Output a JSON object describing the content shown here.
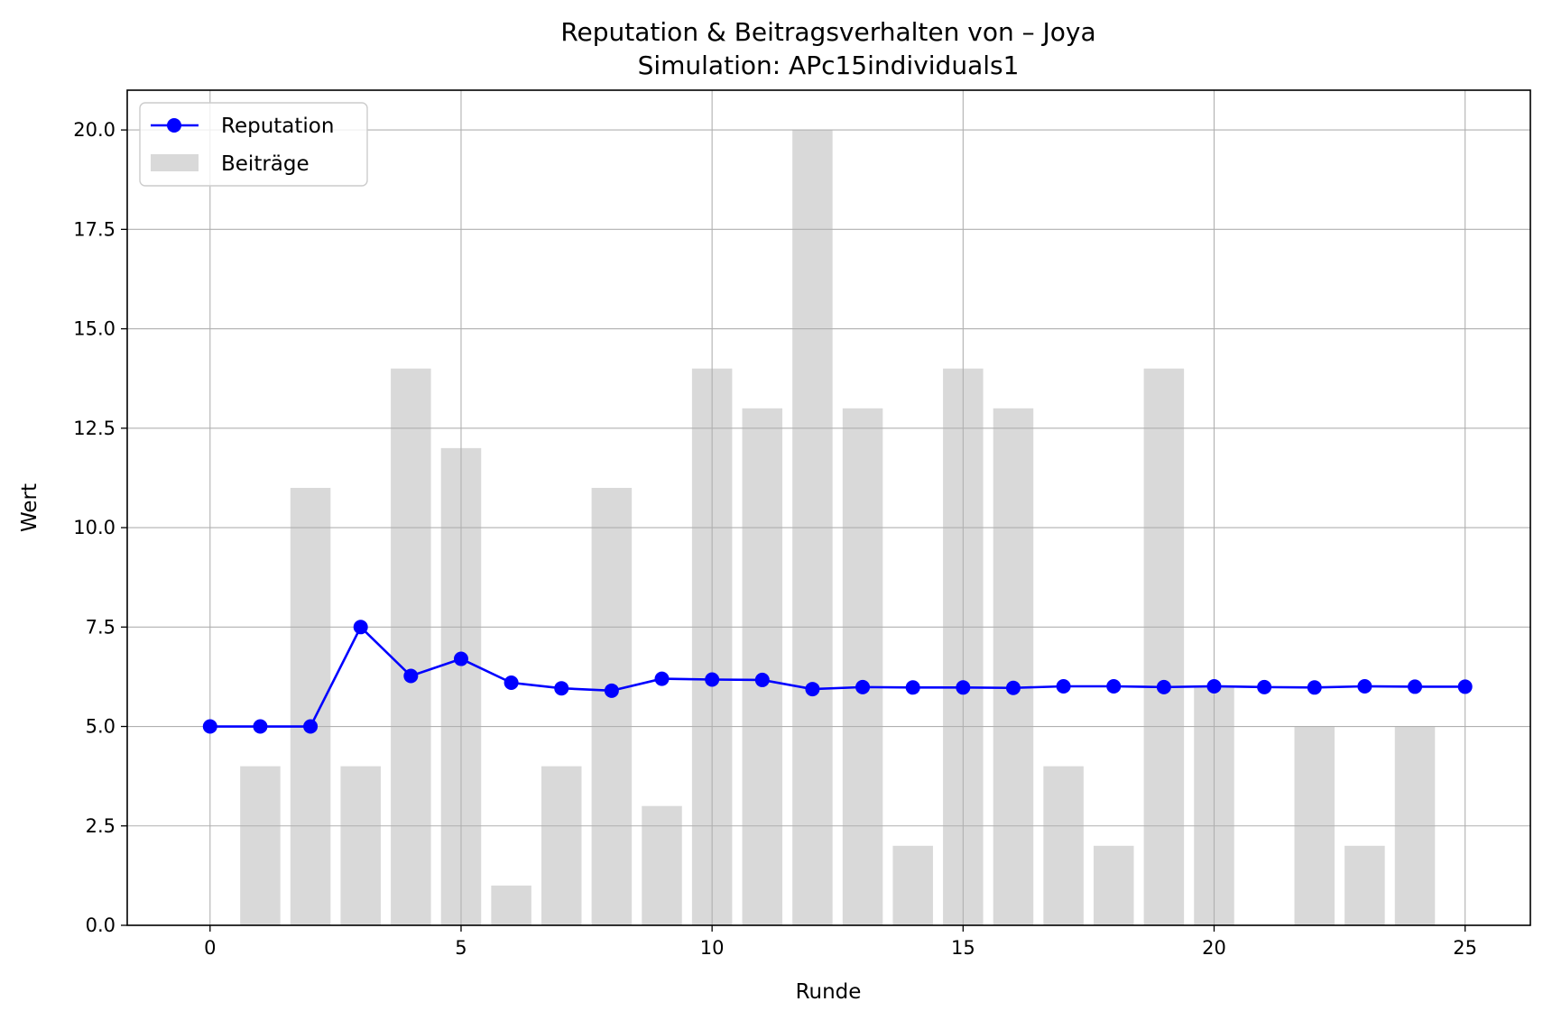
{
  "chart_data": {
    "type": "bar+line",
    "title": "Reputation & Beitragsverhalten von – Joya",
    "subtitle": "Simulation: APc15individuals1",
    "xlabel": "Runde",
    "ylabel": "Wert",
    "xlim": [
      -1.65,
      26.3
    ],
    "ylim": [
      0,
      21
    ],
    "x_ticks": [
      0,
      5,
      10,
      15,
      20,
      25
    ],
    "x_tick_labels": [
      "0",
      "5",
      "10",
      "15",
      "20",
      "25"
    ],
    "y_ticks": [
      0,
      2.5,
      5,
      7.5,
      10,
      12.5,
      15,
      17.5,
      20
    ],
    "y_tick_labels": [
      "0.0",
      "2.5",
      "5.0",
      "7.5",
      "10.0",
      "12.5",
      "15.0",
      "17.5",
      "20.0"
    ],
    "grid": true,
    "legend_position": "upper-left",
    "series": [
      {
        "name": "Reputation",
        "kind": "line",
        "color": "#0000ff",
        "x": [
          0,
          1,
          2,
          3,
          4,
          5,
          6,
          7,
          8,
          9,
          10,
          11,
          12,
          13,
          14,
          15,
          16,
          17,
          18,
          19,
          20,
          21,
          22,
          23,
          24,
          25
        ],
        "values": [
          5.0,
          5.0,
          5.0,
          7.5,
          6.27,
          6.7,
          6.1,
          5.96,
          5.9,
          6.2,
          6.18,
          6.17,
          5.94,
          5.99,
          5.98,
          5.98,
          5.97,
          6.01,
          6.01,
          5.99,
          6.01,
          5.99,
          5.98,
          6.01,
          6.0,
          6.0
        ]
      },
      {
        "name": "Beiträge",
        "kind": "bar",
        "color": "#d9d9d9",
        "x": [
          0,
          1,
          2,
          3,
          4,
          5,
          6,
          7,
          8,
          9,
          10,
          11,
          12,
          13,
          14,
          15,
          16,
          17,
          18,
          19,
          20,
          21,
          22,
          23,
          24,
          25
        ],
        "values": [
          0,
          4,
          11,
          4,
          14,
          12,
          1,
          4,
          11,
          3,
          14,
          13,
          20,
          13,
          2,
          14,
          13,
          4,
          2,
          14,
          6,
          0,
          5,
          2,
          5,
          0
        ]
      }
    ]
  }
}
